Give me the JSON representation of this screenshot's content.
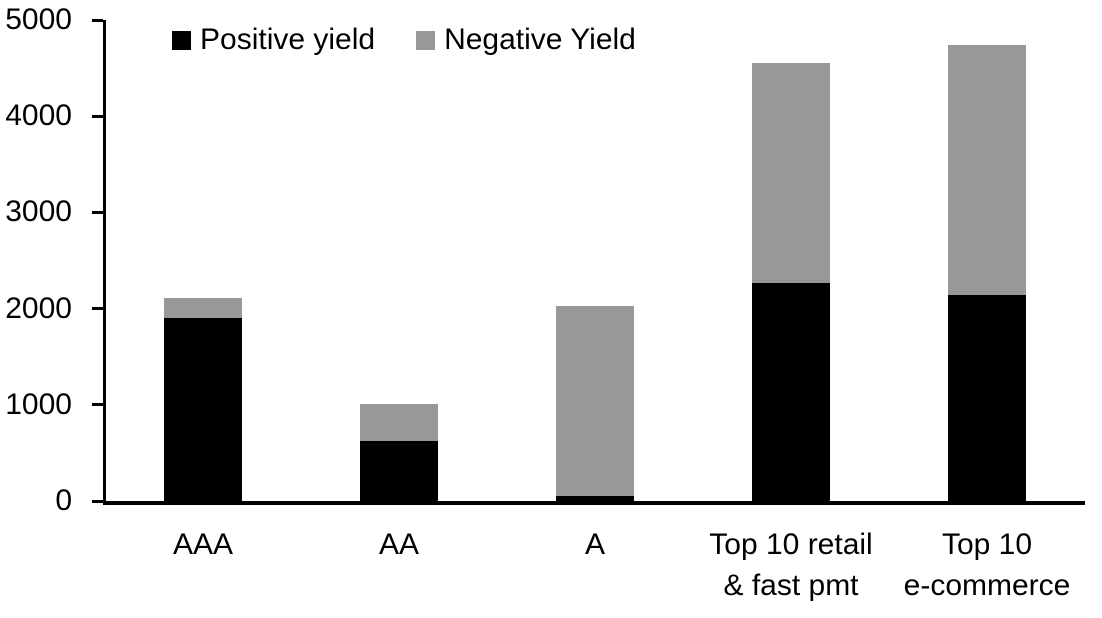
{
  "chart_data": {
    "type": "bar",
    "stacked": true,
    "title": "",
    "xlabel": "",
    "ylabel": "",
    "categories": [
      "AAA",
      "AA",
      "A",
      "Top 10 retail\n& fast pmt",
      "Top 10\ne-commerce"
    ],
    "series": [
      {
        "name": "Positive yield",
        "color": "#000000",
        "values": [
          1900,
          620,
          50,
          2270,
          2140
        ]
      },
      {
        "name": "Negative Yield",
        "color": "#989898",
        "values": [
          210,
          390,
          1980,
          2280,
          2600
        ]
      }
    ],
    "totals": [
      2110,
      1010,
      2030,
      4550,
      4740
    ],
    "ylim": [
      0,
      5000
    ],
    "yticks": [
      0,
      1000,
      2000,
      3000,
      4000,
      5000
    ],
    "grid": false,
    "legend_position": "top-left-inside"
  },
  "colors": {
    "axis": "#000000",
    "background": "#ffffff"
  }
}
